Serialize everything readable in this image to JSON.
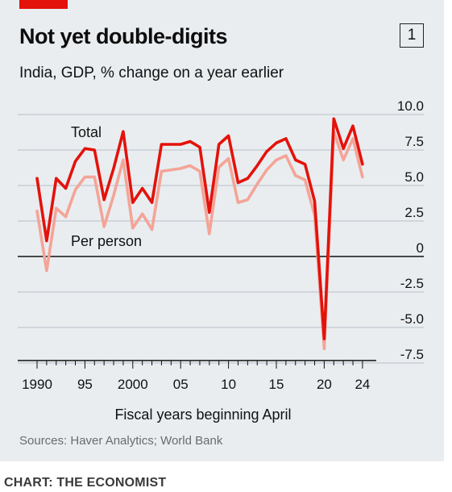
{
  "header": {
    "title": "Not yet double-digits",
    "chart_number": "1",
    "subtitle": "India, GDP, % change on a year earlier"
  },
  "footer": {
    "source": "Sources: Haver Analytics; World Bank",
    "credit": "CHART: THE ECONOMIST"
  },
  "colors": {
    "accent": "#e3120b",
    "total": "#e3120b",
    "per_person": "#f4a497",
    "background": "#e9edf0"
  },
  "chart_data": {
    "type": "line",
    "title": "Not yet double-digits",
    "subtitle": "India, GDP, % change on a year earlier",
    "xlabel": "Fiscal years beginning April",
    "ylabel": "",
    "x_tick_labels": [
      "1990",
      "95",
      "2000",
      "05",
      "10",
      "15",
      "20",
      "24"
    ],
    "x_tick_values": [
      1990,
      1995,
      2000,
      2005,
      2010,
      2015,
      2020,
      2024
    ],
    "y_tick_labels": [
      "10.0",
      "7.5",
      "5.0",
      "2.5",
      "0",
      "-2.5",
      "-5.0",
      "-7.5"
    ],
    "y_tick_values": [
      10,
      7.5,
      5,
      2.5,
      0,
      -2.5,
      -5,
      -7.5
    ],
    "xlim": [
      1989.5,
      2024.5
    ],
    "ylim": [
      -7.5,
      10
    ],
    "grid": "horizontal",
    "y_axis_position": "right",
    "x": [
      1990,
      1991,
      1992,
      1993,
      1994,
      1995,
      1996,
      1997,
      1998,
      1999,
      2000,
      2001,
      2002,
      2003,
      2004,
      2005,
      2006,
      2007,
      2008,
      2009,
      2010,
      2011,
      2012,
      2013,
      2014,
      2015,
      2016,
      2017,
      2018,
      2019,
      2020,
      2021,
      2022,
      2023,
      2024
    ],
    "series": [
      {
        "name": "Total",
        "values": [
          5.5,
          1.1,
          5.5,
          4.8,
          6.7,
          7.6,
          7.5,
          4.0,
          6.2,
          8.8,
          3.8,
          4.8,
          3.8,
          7.9,
          7.9,
          7.9,
          8.1,
          7.7,
          3.1,
          7.9,
          8.5,
          5.2,
          5.5,
          6.4,
          7.4,
          8.0,
          8.3,
          6.8,
          6.5,
          3.9,
          -5.8,
          9.7,
          7.6,
          9.2,
          6.5
        ]
      },
      {
        "name": "Per person",
        "values": [
          3.2,
          -1.0,
          3.4,
          2.8,
          4.7,
          5.6,
          5.6,
          2.1,
          4.3,
          6.8,
          2.0,
          3.0,
          1.9,
          6.0,
          6.1,
          6.2,
          6.4,
          6.0,
          1.6,
          6.3,
          6.9,
          3.8,
          4.0,
          5.1,
          6.1,
          6.8,
          7.1,
          5.7,
          5.4,
          2.9,
          -6.5,
          8.8,
          6.8,
          8.3,
          5.6
        ]
      }
    ]
  }
}
